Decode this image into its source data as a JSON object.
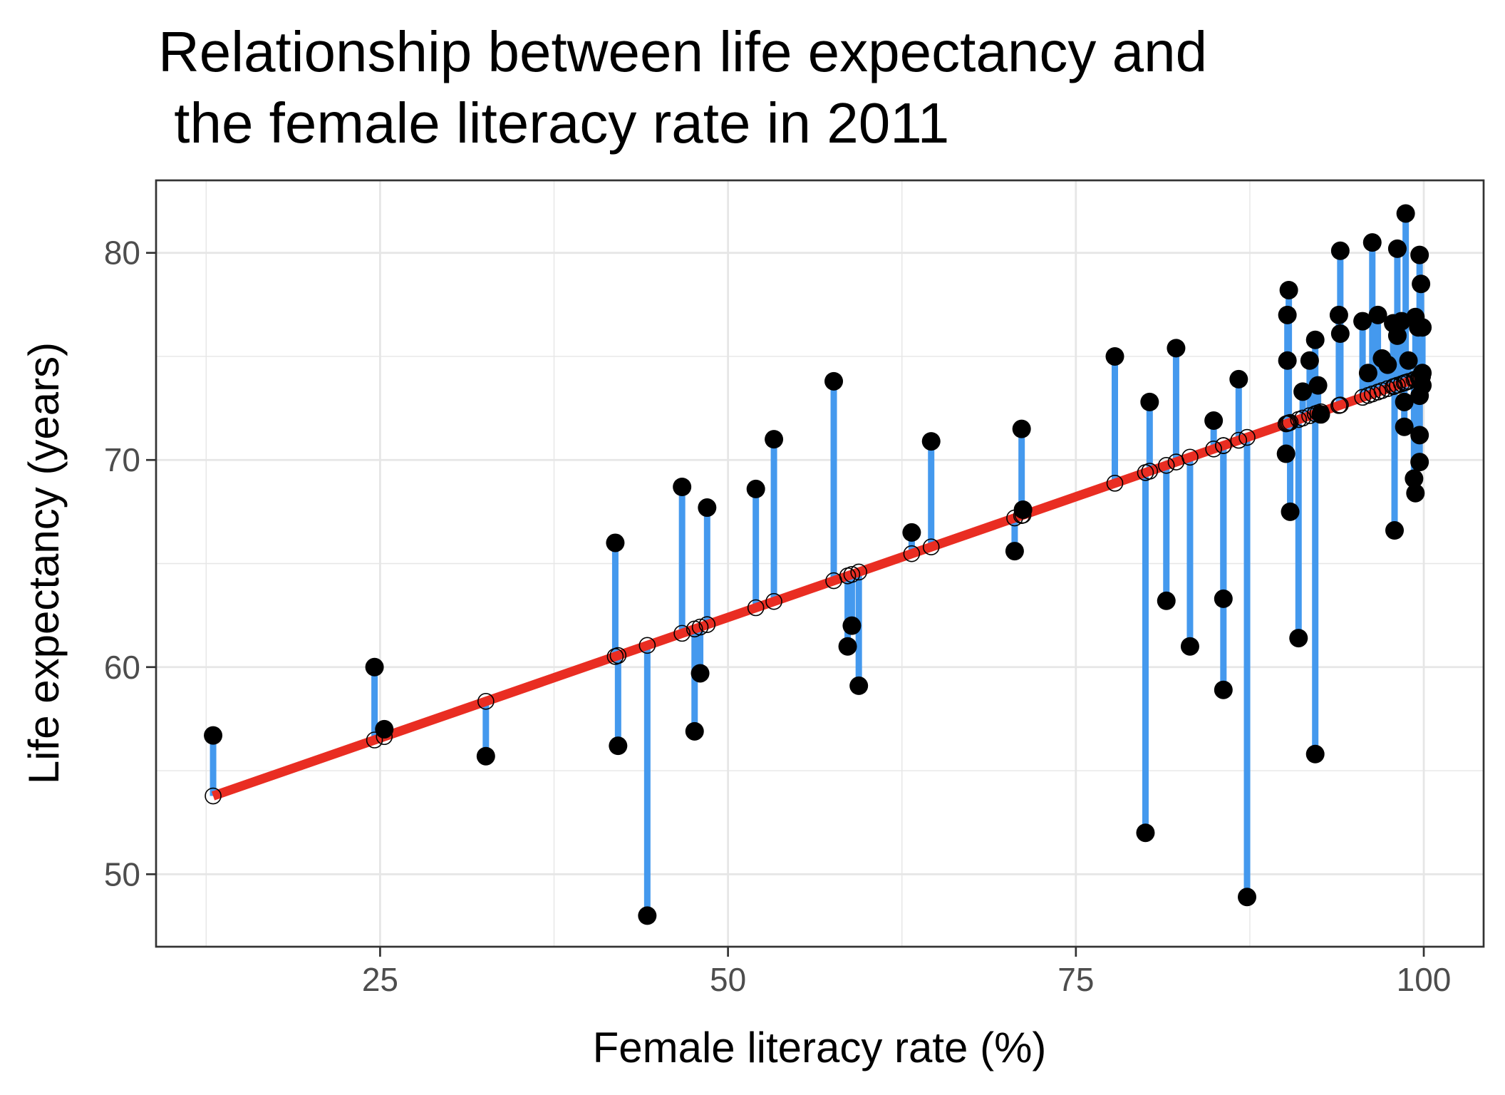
{
  "chart_data": {
    "type": "scatter",
    "title_lines": [
      "Relationship between life expectancy and",
      " the female literacy rate in 2011"
    ],
    "xlabel": "Female literacy rate (%)",
    "ylabel": "Life expectancy (years)",
    "xlim": [
      8.9,
      104.3
    ],
    "ylim": [
      46.5,
      83.5
    ],
    "x_ticks": [
      25,
      50,
      75,
      100
    ],
    "x_tick_labels": [
      "25",
      "50",
      "75",
      "100"
    ],
    "y_ticks": [
      50,
      60,
      70,
      80
    ],
    "y_tick_labels": [
      "50",
      "60",
      "70",
      "80"
    ],
    "grid": true,
    "legend": "none",
    "colors": {
      "point": "#000000",
      "residual": "#4499ee",
      "fit_line": "#e92d22",
      "fitted_marker_stroke": "#000000",
      "grid": "#e6e6e6",
      "panel_border": "#333333"
    },
    "regression": {
      "intercept": 50.75,
      "slope": 0.233
    },
    "series": [
      {
        "name": "observed",
        "points": [
          [
            13.0,
            56.7
          ],
          [
            24.6,
            60.0
          ],
          [
            25.3,
            57.0
          ],
          [
            32.6,
            55.7
          ],
          [
            41.9,
            66.0
          ],
          [
            42.1,
            56.2
          ],
          [
            44.2,
            48.0
          ],
          [
            46.7,
            68.7
          ],
          [
            47.6,
            56.9
          ],
          [
            48.0,
            59.7
          ],
          [
            48.5,
            67.7
          ],
          [
            52.0,
            68.6
          ],
          [
            53.3,
            71.0
          ],
          [
            57.6,
            73.8
          ],
          [
            58.6,
            61.0
          ],
          [
            58.9,
            62.0
          ],
          [
            59.4,
            59.1
          ],
          [
            63.2,
            66.5
          ],
          [
            64.6,
            70.9
          ],
          [
            70.6,
            65.6
          ],
          [
            71.1,
            71.5
          ],
          [
            71.2,
            67.6
          ],
          [
            77.8,
            75.0
          ],
          [
            80.0,
            52.0
          ],
          [
            80.3,
            72.8
          ],
          [
            81.5,
            63.2
          ],
          [
            82.2,
            75.4
          ],
          [
            83.2,
            61.0
          ],
          [
            84.9,
            71.9
          ],
          [
            85.6,
            63.3
          ],
          [
            85.6,
            58.9
          ],
          [
            86.7,
            73.9
          ],
          [
            87.3,
            48.9
          ],
          [
            90.3,
            78.2
          ],
          [
            90.2,
            77.0
          ],
          [
            90.2,
            74.8
          ],
          [
            90.1,
            70.3
          ],
          [
            90.4,
            67.5
          ],
          [
            91.0,
            61.4
          ],
          [
            91.8,
            74.8
          ],
          [
            91.3,
            73.3
          ],
          [
            92.2,
            75.8
          ],
          [
            92.2,
            55.8
          ],
          [
            92.4,
            73.6
          ],
          [
            92.6,
            72.2
          ],
          [
            93.9,
            77.0
          ],
          [
            94.0,
            76.1
          ],
          [
            94.0,
            80.1
          ],
          [
            95.6,
            76.7
          ],
          [
            96.0,
            74.2
          ],
          [
            96.3,
            80.5
          ],
          [
            96.7,
            77.0
          ],
          [
            97.0,
            74.9
          ],
          [
            97.4,
            74.6
          ],
          [
            97.8,
            76.6
          ],
          [
            97.9,
            66.6
          ],
          [
            98.1,
            76.0
          ],
          [
            98.1,
            80.2
          ],
          [
            98.4,
            76.7
          ],
          [
            98.6,
            72.8
          ],
          [
            98.7,
            81.9
          ],
          [
            98.9,
            74.8
          ],
          [
            98.6,
            71.6
          ],
          [
            99.3,
            69.1
          ],
          [
            99.4,
            76.9
          ],
          [
            99.4,
            68.4
          ],
          [
            99.6,
            76.4
          ],
          [
            99.7,
            79.9
          ],
          [
            99.7,
            71.2
          ],
          [
            99.7,
            69.9
          ],
          [
            99.7,
            73.1
          ],
          [
            99.8,
            78.5
          ],
          [
            99.9,
            74.2
          ],
          [
            99.9,
            76.4
          ],
          [
            99.9,
            73.6
          ]
        ]
      }
    ]
  }
}
